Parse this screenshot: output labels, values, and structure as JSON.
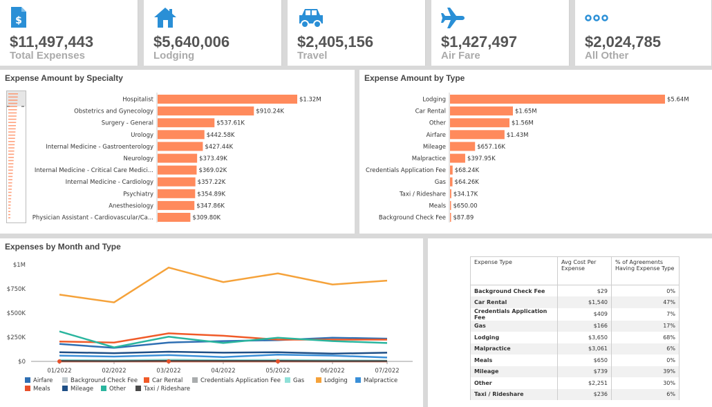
{
  "kpis": [
    {
      "icon": "dollar-document-icon",
      "value": "$11,497,443",
      "label": "Total Expenses"
    },
    {
      "icon": "house-icon",
      "value": "$5,640,006",
      "label": "Lodging"
    },
    {
      "icon": "car-icon",
      "value": "$2,405,156",
      "label": "Travel"
    },
    {
      "icon": "airplane-icon",
      "value": "$1,427,497",
      "label": "Air Fare"
    },
    {
      "icon": "more-dots-icon",
      "value": "$2,024,785",
      "label": "All Other"
    }
  ],
  "colors": {
    "icon": "#2a8fd6",
    "bar": "#ff8a5c"
  },
  "specialty": {
    "title": "Expense Amount by Specialty",
    "chart_data": {
      "type": "bar",
      "categories": [
        "Hospitalist",
        "Obstetrics and Gynecology",
        "Surgery - General",
        "Urology",
        "Internal Medicine - Gastroenterology",
        "Neurology",
        "Internal Medicine - Critical Care Medici...",
        "Internal Medicine - Cardiology",
        "Psychiatry",
        "Anesthesiology",
        "Physician Assistant - Cardiovascular/Ca..."
      ],
      "values": [
        1320000,
        910240,
        537610,
        442580,
        427440,
        373490,
        369020,
        357220,
        354890,
        347860,
        309800
      ],
      "labels": [
        "$1.32M",
        "$910.24K",
        "$537.61K",
        "$442.58K",
        "$427.44K",
        "$373.49K",
        "$369.02K",
        "$357.22K",
        "$354.89K",
        "$347.86K",
        "$309.80K"
      ]
    }
  },
  "bytype": {
    "title": "Expense Amount by Type",
    "chart_data": {
      "type": "bar",
      "categories": [
        "Lodging",
        "Car Rental",
        "Other",
        "Airfare",
        "Mileage",
        "Malpractice",
        "Credentials Application Fee",
        "Gas",
        "Taxi / Rideshare",
        "Meals",
        "Background Check Fee"
      ],
      "values": [
        5640000,
        1650000,
        1560000,
        1430000,
        657160,
        397950,
        68240,
        64260,
        34170,
        650,
        87.89
      ],
      "labels": [
        "$5.64M",
        "$1.65M",
        "$1.56M",
        "$1.43M",
        "$657.16K",
        "$397.95K",
        "$68.24K",
        "$64.26K",
        "$34.17K",
        "$650.00",
        "$87.89"
      ]
    }
  },
  "monthly": {
    "title": "Expenses by Month and Type",
    "chart_data": {
      "type": "line",
      "x": [
        "01/2022",
        "02/2022",
        "03/2022",
        "04/2022",
        "05/2022",
        "06/2022",
        "07/2022"
      ],
      "yticks": [
        "$0",
        "$250K",
        "$500K",
        "$750K",
        "$1M"
      ],
      "ylim": [
        0,
        1000000
      ],
      "series": [
        {
          "name": "Airfare",
          "color": "#2f6fb3",
          "values": [
            180000,
            140000,
            195000,
            210000,
            220000,
            245000,
            235000
          ]
        },
        {
          "name": "Background Check Fee",
          "color": "#c4ccd0",
          "values": [
            0,
            0,
            0,
            0,
            0,
            0,
            0
          ]
        },
        {
          "name": "Car Rental",
          "color": "#f05a28",
          "values": [
            205000,
            195000,
            290000,
            265000,
            225000,
            225000,
            225000
          ]
        },
        {
          "name": "Credentials Application Fee",
          "color": "#a9acad",
          "values": [
            5000,
            4000,
            6000,
            5000,
            8000,
            6000,
            5000
          ]
        },
        {
          "name": "Gas",
          "color": "#8fe0d8",
          "values": [
            15000,
            12000,
            18000,
            14000,
            16000,
            12000,
            8000
          ]
        },
        {
          "name": "Lodging",
          "color": "#f5a23a",
          "values": [
            690000,
            610000,
            970000,
            820000,
            910000,
            795000,
            835000
          ]
        },
        {
          "name": "Malpractice",
          "color": "#3a8fd8",
          "values": [
            60000,
            50000,
            65000,
            45000,
            70000,
            60000,
            40000
          ]
        },
        {
          "name": "Meals",
          "color": "#e8502a",
          "values": [
            0,
            0,
            0,
            0,
            0,
            0,
            0
          ]
        },
        {
          "name": "Mileage",
          "color": "#1e4f86",
          "values": [
            95000,
            85000,
            100000,
            90000,
            95000,
            80000,
            90000
          ]
        },
        {
          "name": "Other",
          "color": "#2ab59e",
          "values": [
            310000,
            145000,
            255000,
            190000,
            245000,
            210000,
            190000
          ]
        },
        {
          "name": "Taxi / Rideshare",
          "color": "#4a4a4a",
          "values": [
            5000,
            4000,
            6000,
            5000,
            5000,
            4000,
            4000
          ]
        }
      ]
    }
  },
  "table": {
    "headers": [
      "Expense Type",
      "Avg Cost Per Expense",
      "% of Agreements Having Expense Type"
    ],
    "rows": [
      [
        "Background Check Fee",
        "$29",
        "0%"
      ],
      [
        "Car Rental",
        "$1,540",
        "47%"
      ],
      [
        "Credentials Application Fee",
        "$409",
        "7%"
      ],
      [
        "Gas",
        "$166",
        "17%"
      ],
      [
        "Lodging",
        "$3,650",
        "68%"
      ],
      [
        "Malpractice",
        "$3,061",
        "6%"
      ],
      [
        "Meals",
        "$650",
        "0%"
      ],
      [
        "Mileage",
        "$739",
        "39%"
      ],
      [
        "Other",
        "$2,251",
        "30%"
      ],
      [
        "Taxi / Rideshare",
        "$236",
        "6%"
      ]
    ]
  }
}
